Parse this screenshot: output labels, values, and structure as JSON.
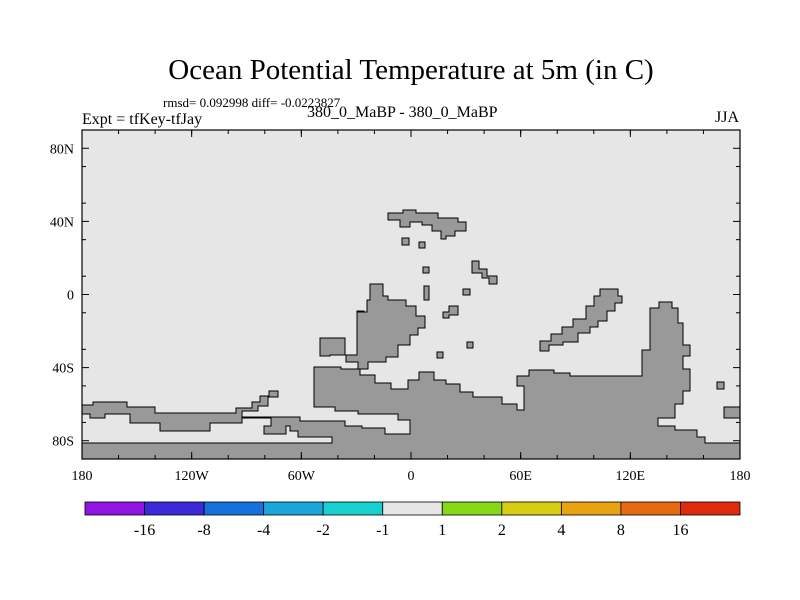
{
  "title": "Ocean Potential Temperature at 5m (in C)",
  "stats_line": "rmsd= 0.092998 diff= -0.0223827",
  "left_string": "Expt = tfKey-tfJay",
  "center_string": "380_0_MaBP - 380_0_MaBP",
  "right_string": "JJA",
  "colors": {
    "background_field": "#e6e6e6",
    "land": "#999999",
    "frame": "#000000"
  },
  "map": {
    "lon_range": [
      -180,
      180
    ],
    "lat_range": [
      -90,
      90
    ],
    "x_ticks": [
      {
        "value": -180,
        "label": "180"
      },
      {
        "value": -120,
        "label": "120W"
      },
      {
        "value": -60,
        "label": "60W"
      },
      {
        "value": 0,
        "label": "0"
      },
      {
        "value": 60,
        "label": "60E"
      },
      {
        "value": 120,
        "label": "120E"
      },
      {
        "value": 180,
        "label": "180"
      }
    ],
    "y_ticks": [
      {
        "value": 80,
        "label": "80N"
      },
      {
        "value": 40,
        "label": "40N"
      },
      {
        "value": 0,
        "label": "0"
      },
      {
        "value": -40,
        "label": "40S"
      },
      {
        "value": -80,
        "label": "80S"
      }
    ]
  },
  "colorbar": {
    "colors": [
      "#8f15e3",
      "#3c2ad8",
      "#1671dd",
      "#1aa6db",
      "#19d0d0",
      "#e6e6e6",
      "#86d916",
      "#d8cd12",
      "#e8a212",
      "#e86a10",
      "#de2b10"
    ],
    "labels": [
      "-16",
      "-8",
      "-4",
      "-2",
      "-1",
      "1",
      "2",
      "4",
      "8",
      "16"
    ]
  }
}
